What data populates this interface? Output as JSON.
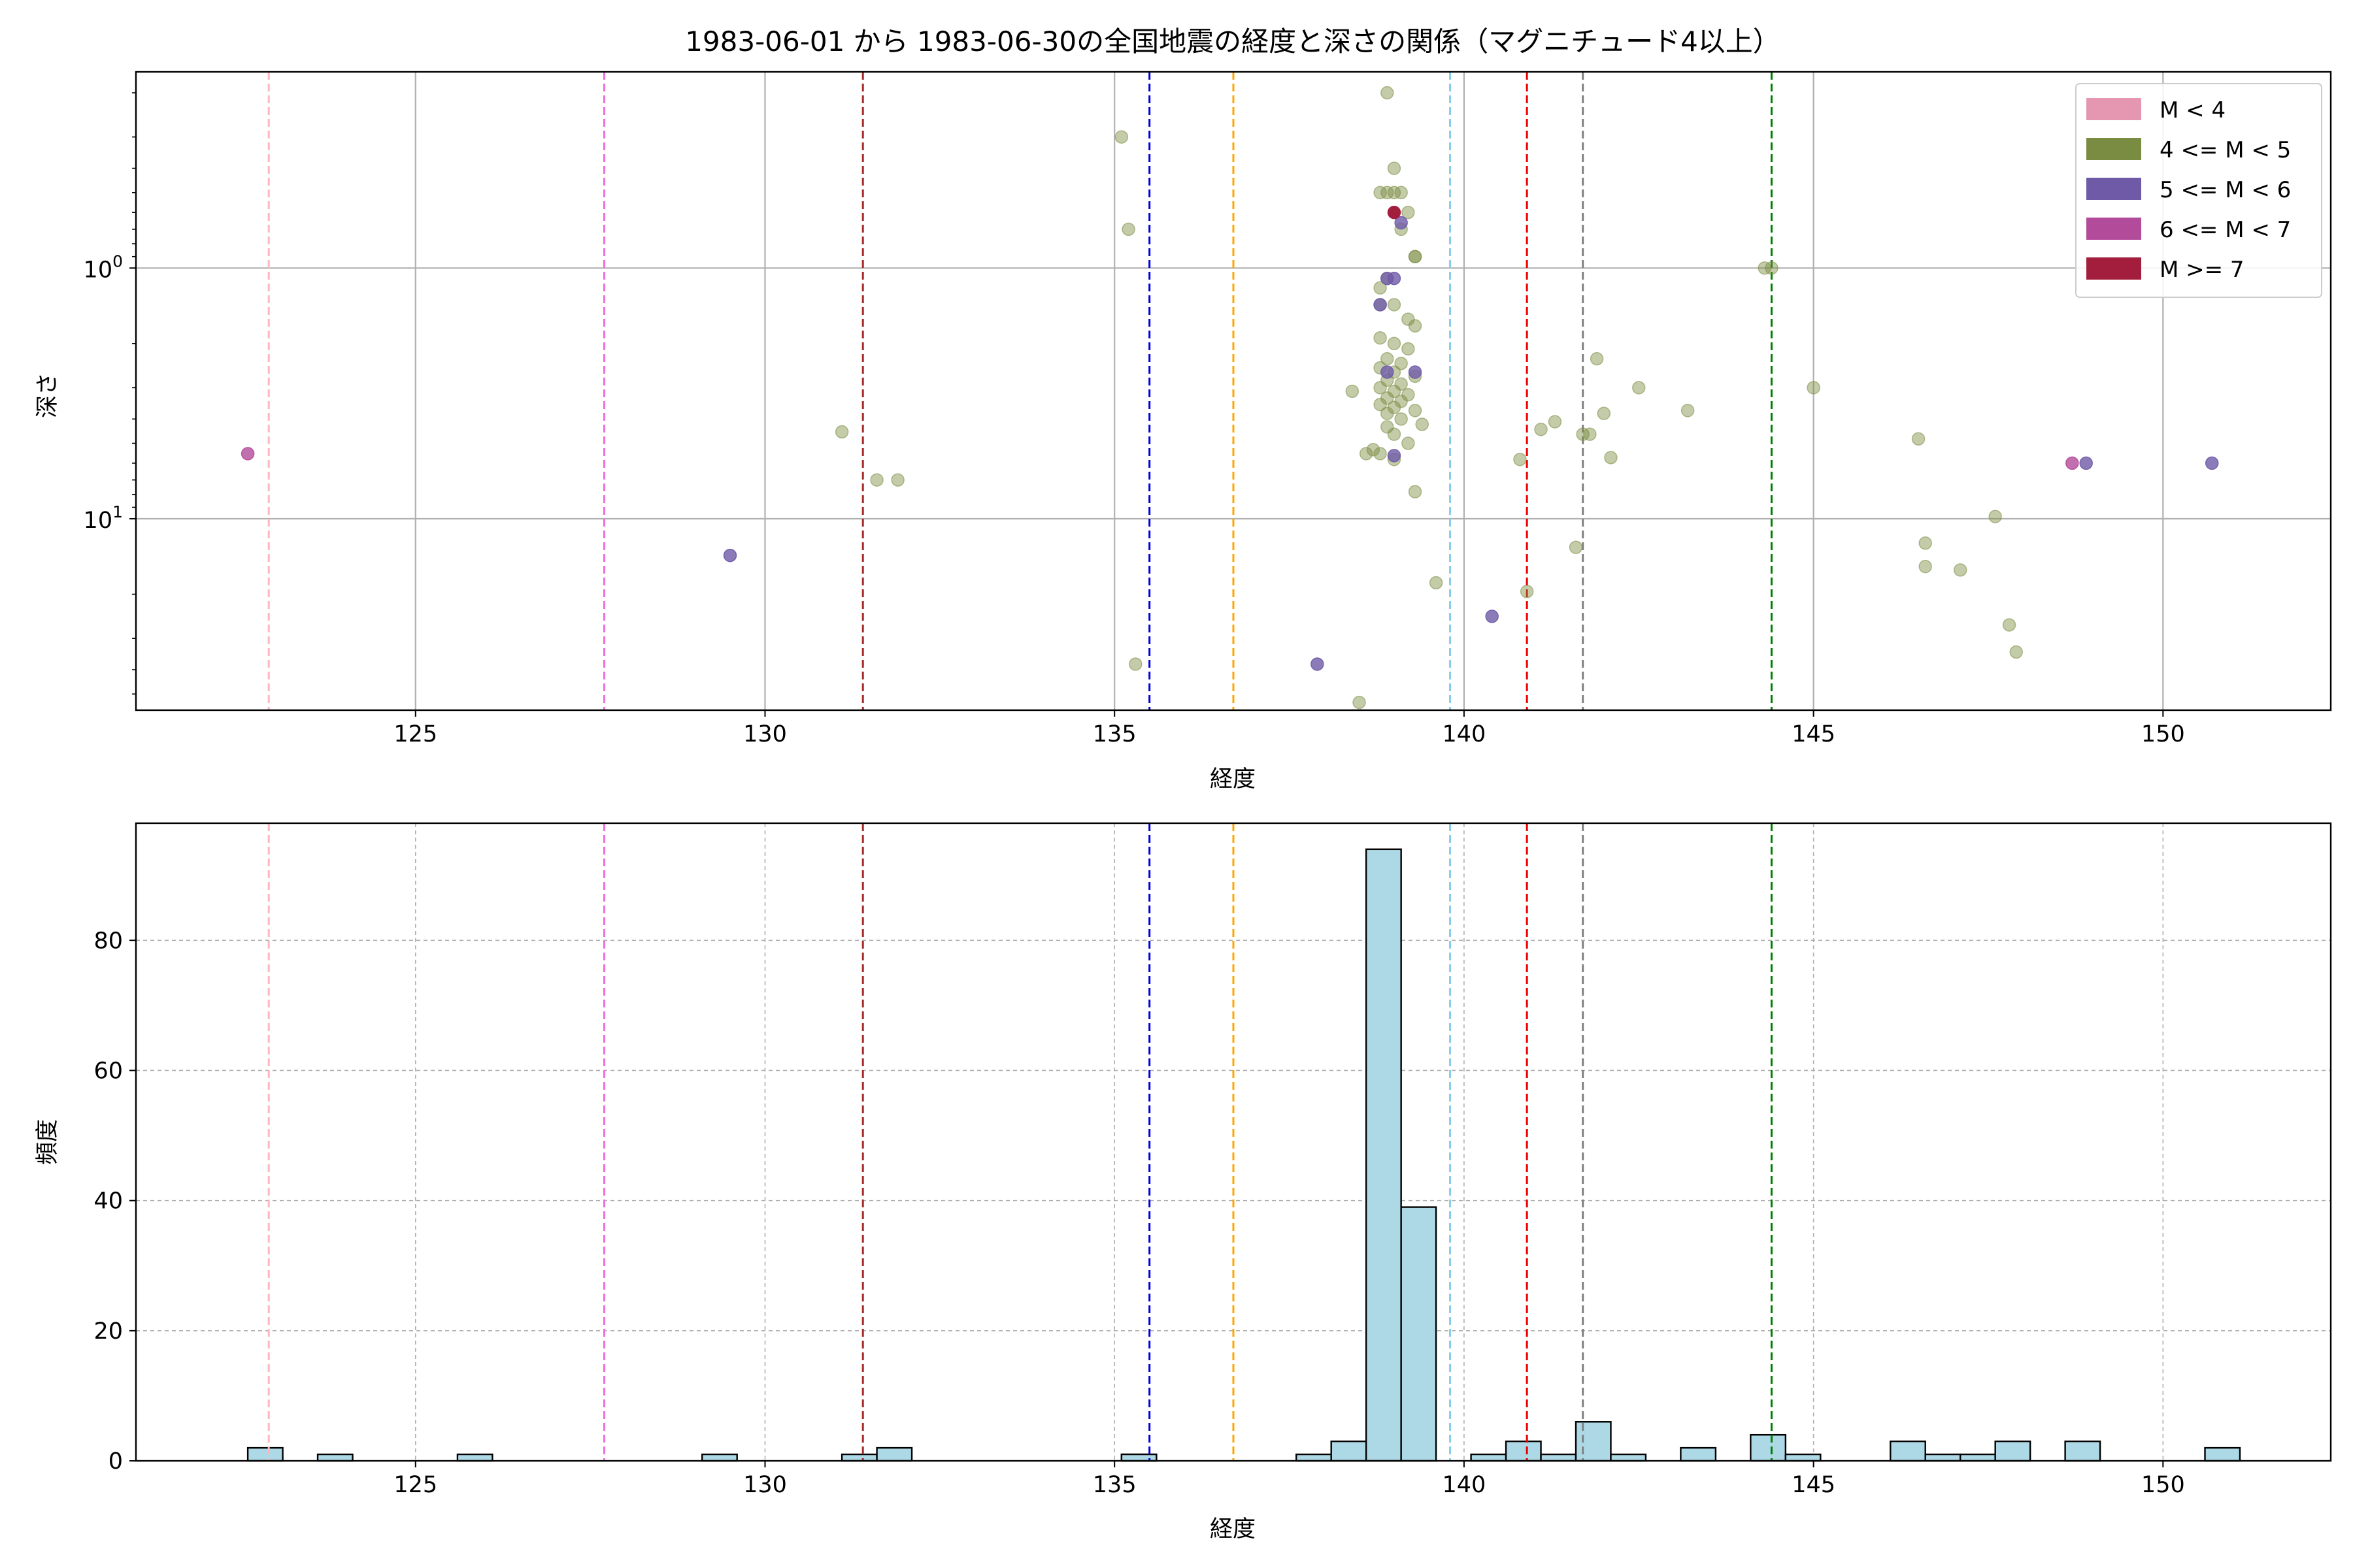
{
  "chart_data": [
    {
      "type": "scatter",
      "title": "1983-06-01 から 1983-06-30の全国地震の経度と深さの関係（マグニチュード4以上）",
      "xlabel": "経度",
      "ylabel": "深さ",
      "xlim": [
        121,
        152.4
      ],
      "ylim_log": [
        58,
        0.165
      ],
      "y_scale": "log",
      "y_inverted": true,
      "grid": true,
      "xticks": [
        {
          "value": 125,
          "label": "125"
        },
        {
          "value": 130,
          "label": "130"
        },
        {
          "value": 135,
          "label": "135"
        },
        {
          "value": 140,
          "label": "140"
        },
        {
          "value": 145,
          "label": "145"
        },
        {
          "value": 150,
          "label": "150"
        }
      ],
      "yticks": [
        {
          "value": 1,
          "base": "10",
          "exp": "0"
        },
        {
          "value": 10,
          "base": "10",
          "exp": "1"
        }
      ],
      "legend": {
        "position": "top-right",
        "entries": [
          {
            "label": "M < 4",
            "color": "#e597b2"
          },
          {
            "label": "4 <= M < 5",
            "color": "#7a8c41"
          },
          {
            "label": "5 <= M < 6",
            "color": "#6f5aa7"
          },
          {
            "label": "6 <= M < 7",
            "color": "#b34b9b"
          },
          {
            "label": "M >= 7",
            "color": "#a31e3c"
          }
        ]
      },
      "vlines": [
        {
          "x": 122.9,
          "color": "#ffb6c1"
        },
        {
          "x": 127.7,
          "color": "#ee6ee2"
        },
        {
          "x": 131.4,
          "color": "#a52a2a"
        },
        {
          "x": 135.5,
          "color": "#0000dd"
        },
        {
          "x": 136.7,
          "color": "#ffa500"
        },
        {
          "x": 139.8,
          "color": "#87ceeb"
        },
        {
          "x": 140.9,
          "color": "#ee0000"
        },
        {
          "x": 141.7,
          "color": "#808080"
        },
        {
          "x": 144.4,
          "color": "#008000"
        }
      ],
      "series": [
        {
          "magnitude_class": "4 <= M < 5",
          "color": "#7a8c41",
          "alpha": 0.45,
          "points": [
            [
              131.1,
              4.5
            ],
            [
              131.6,
              7.0
            ],
            [
              131.9,
              7.0
            ],
            [
              135.1,
              0.3
            ],
            [
              135.2,
              0.7
            ],
            [
              135.3,
              38
            ],
            [
              138.4,
              3.1
            ],
            [
              138.5,
              54
            ],
            [
              138.6,
              5.5
            ],
            [
              138.7,
              5.3
            ],
            [
              138.8,
              0.5
            ],
            [
              138.9,
              0.2
            ],
            [
              138.8,
              1.2
            ],
            [
              139.0,
              0.4
            ],
            [
              139.0,
              0.5
            ],
            [
              139.1,
              0.5
            ],
            [
              138.9,
              0.5
            ],
            [
              139.2,
              0.6
            ],
            [
              139.1,
              0.7
            ],
            [
              139.3,
              0.9
            ],
            [
              139.3,
              0.9
            ],
            [
              138.9,
              1.1
            ],
            [
              138.8,
              1.4
            ],
            [
              139.0,
              1.4
            ],
            [
              139.2,
              1.6
            ],
            [
              139.3,
              1.7
            ],
            [
              138.8,
              1.9
            ],
            [
              139.0,
              2.0
            ],
            [
              139.2,
              2.1
            ],
            [
              138.9,
              2.3
            ],
            [
              139.1,
              2.4
            ],
            [
              138.8,
              2.5
            ],
            [
              139.0,
              2.6
            ],
            [
              139.3,
              2.7
            ],
            [
              138.9,
              2.8
            ],
            [
              139.1,
              2.9
            ],
            [
              138.8,
              3.0
            ],
            [
              139.0,
              3.1
            ],
            [
              139.2,
              3.2
            ],
            [
              138.9,
              3.3
            ],
            [
              139.1,
              3.4
            ],
            [
              138.8,
              3.5
            ],
            [
              139.0,
              3.6
            ],
            [
              139.3,
              3.7
            ],
            [
              138.9,
              3.8
            ],
            [
              139.1,
              4.0
            ],
            [
              138.9,
              4.3
            ],
            [
              139.0,
              4.6
            ],
            [
              139.2,
              5.0
            ],
            [
              138.8,
              5.5
            ],
            [
              139.0,
              5.8
            ],
            [
              139.4,
              4.2
            ],
            [
              139.3,
              7.8
            ],
            [
              139.6,
              18
            ],
            [
              140.8,
              5.8
            ],
            [
              140.9,
              19.5
            ],
            [
              141.1,
              4.4
            ],
            [
              141.3,
              4.1
            ],
            [
              141.6,
              13
            ],
            [
              141.7,
              4.6
            ],
            [
              141.8,
              4.6
            ],
            [
              141.9,
              2.3
            ],
            [
              142.0,
              3.8
            ],
            [
              142.1,
              5.7
            ],
            [
              142.5,
              3.0
            ],
            [
              143.2,
              3.7
            ],
            [
              144.3,
              1.0
            ],
            [
              144.4,
              1.0
            ],
            [
              145.0,
              3.0
            ],
            [
              146.5,
              4.8
            ],
            [
              146.6,
              12.5
            ],
            [
              146.6,
              15.5
            ],
            [
              147.1,
              16
            ],
            [
              147.6,
              9.8
            ],
            [
              147.8,
              26.5
            ],
            [
              147.9,
              34
            ]
          ]
        },
        {
          "magnitude_class": "5 <= M < 6",
          "color": "#6f5aa7",
          "alpha": 0.8,
          "points": [
            [
              129.5,
              14
            ],
            [
              137.9,
              38
            ],
            [
              140.4,
              24.5
            ],
            [
              138.8,
              1.4
            ],
            [
              138.9,
              1.1
            ],
            [
              139.1,
              0.66
            ],
            [
              139.0,
              1.1
            ],
            [
              138.9,
              2.6
            ],
            [
              139.3,
              2.6
            ],
            [
              139.0,
              5.6
            ],
            [
              148.9,
              6.0
            ],
            [
              150.7,
              6.0
            ]
          ]
        },
        {
          "magnitude_class": "6 <= M < 7",
          "color": "#b34b9b",
          "alpha": 0.8,
          "points": [
            [
              122.6,
              5.5
            ],
            [
              148.7,
              6.0
            ]
          ]
        },
        {
          "magnitude_class": "M >= 7",
          "color": "#a31e3c",
          "alpha": 1.0,
          "points": [
            [
              139.0,
              0.6
            ]
          ]
        }
      ]
    },
    {
      "type": "bar",
      "subtype": "histogram",
      "xlabel": "経度",
      "ylabel": "頻度",
      "xlim": [
        121,
        152.4
      ],
      "ylim": [
        0,
        98
      ],
      "grid": true,
      "bar_color": "#add8e6",
      "edge_color": "#000000",
      "bin_width": 0.5,
      "xticks": [
        {
          "value": 125,
          "label": "125"
        },
        {
          "value": 130,
          "label": "130"
        },
        {
          "value": 135,
          "label": "135"
        },
        {
          "value": 140,
          "label": "140"
        },
        {
          "value": 145,
          "label": "145"
        },
        {
          "value": 150,
          "label": "150"
        }
      ],
      "yticks": [
        {
          "value": 0,
          "label": "0"
        },
        {
          "value": 20,
          "label": "20"
        },
        {
          "value": 40,
          "label": "40"
        },
        {
          "value": 60,
          "label": "60"
        },
        {
          "value": 80,
          "label": "80"
        }
      ],
      "vlines": [
        {
          "x": 122.9,
          "color": "#ffb6c1"
        },
        {
          "x": 127.7,
          "color": "#ee6ee2"
        },
        {
          "x": 131.4,
          "color": "#a52a2a"
        },
        {
          "x": 135.5,
          "color": "#0000dd"
        },
        {
          "x": 136.7,
          "color": "#ffa500"
        },
        {
          "x": 139.8,
          "color": "#87ceeb"
        },
        {
          "x": 140.9,
          "color": "#ee0000"
        },
        {
          "x": 141.7,
          "color": "#808080"
        },
        {
          "x": 144.4,
          "color": "#008000"
        }
      ],
      "bins": [
        {
          "x0": 122.6,
          "count": 2
        },
        {
          "x0": 123.6,
          "count": 1
        },
        {
          "x0": 125.6,
          "count": 1
        },
        {
          "x0": 129.1,
          "count": 1
        },
        {
          "x0": 131.1,
          "count": 1
        },
        {
          "x0": 131.6,
          "count": 2
        },
        {
          "x0": 135.1,
          "count": 1
        },
        {
          "x0": 135.1,
          "count": 1
        },
        {
          "x0": 137.6,
          "count": 1
        },
        {
          "x0": 138.1,
          "count": 3
        },
        {
          "x0": 138.6,
          "count": 94
        },
        {
          "x0": 139.1,
          "count": 39
        },
        {
          "x0": 140.1,
          "count": 1
        },
        {
          "x0": 140.6,
          "count": 3
        },
        {
          "x0": 141.1,
          "count": 1
        },
        {
          "x0": 141.6,
          "count": 6
        },
        {
          "x0": 142.1,
          "count": 1
        },
        {
          "x0": 143.1,
          "count": 2
        },
        {
          "x0": 144.1,
          "count": 4
        },
        {
          "x0": 144.6,
          "count": 1
        },
        {
          "x0": 146.1,
          "count": 3
        },
        {
          "x0": 146.6,
          "count": 1
        },
        {
          "x0": 147.1,
          "count": 1
        },
        {
          "x0": 147.6,
          "count": 3
        },
        {
          "x0": 148.6,
          "count": 3
        },
        {
          "x0": 150.6,
          "count": 2
        }
      ]
    }
  ]
}
